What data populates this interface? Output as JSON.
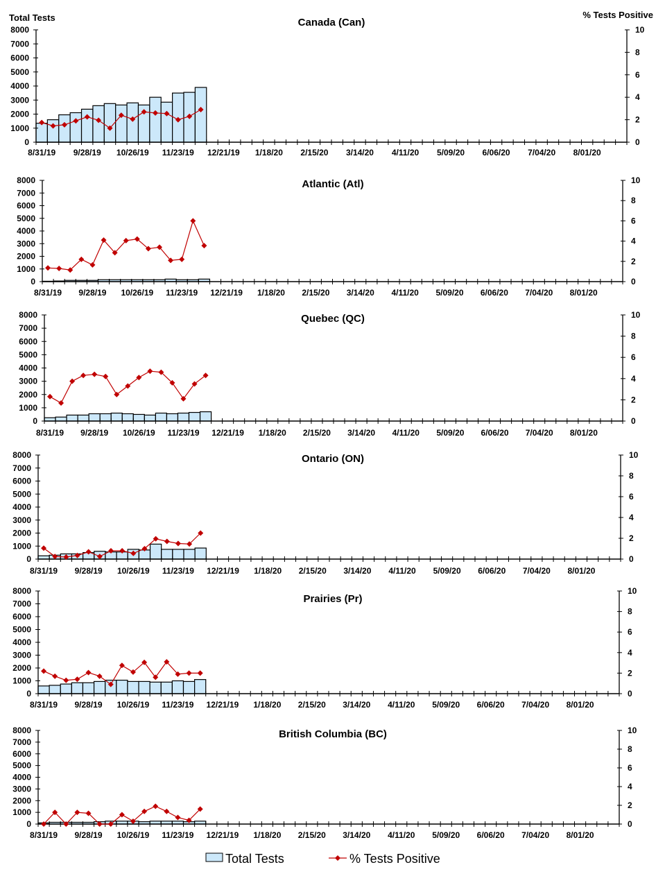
{
  "chart_data": [
    {
      "type": "bar+line",
      "title": "Canada (Can)",
      "ylabel": "Total Tests",
      "y2label": "% Tests Positive",
      "ylim": [
        0,
        8000
      ],
      "y2lim": [
        0,
        10
      ],
      "bars": [
        1350,
        1600,
        1950,
        2100,
        2350,
        2600,
        2750,
        2650,
        2800,
        2650,
        3200,
        2850,
        3500,
        3550,
        3900
      ],
      "line": [
        1.75,
        1.45,
        1.55,
        1.9,
        2.25,
        1.95,
        1.25,
        2.4,
        2.05,
        2.7,
        2.6,
        2.55,
        2.0,
        2.3,
        2.9
      ]
    },
    {
      "type": "bar+line",
      "title": "Atlantic (Atl)",
      "ylim": [
        0,
        8000
      ],
      "y2lim": [
        0,
        10
      ],
      "bars": [
        30,
        50,
        100,
        100,
        100,
        150,
        150,
        150,
        150,
        150,
        150,
        200,
        150,
        150,
        200
      ],
      "line": [
        1.35,
        1.3,
        1.15,
        2.2,
        1.65,
        4.1,
        2.85,
        4.05,
        4.2,
        3.25,
        3.4,
        2.1,
        2.2,
        6.0,
        3.55
      ]
    },
    {
      "type": "bar+line",
      "title": "Quebec (QC)",
      "ylim": [
        0,
        8000
      ],
      "y2lim": [
        0,
        10
      ],
      "bars": [
        250,
        300,
        450,
        450,
        550,
        550,
        600,
        550,
        500,
        450,
        600,
        550,
        600,
        650,
        700
      ],
      "line": [
        2.3,
        1.7,
        3.75,
        4.3,
        4.4,
        4.2,
        2.5,
        3.3,
        4.1,
        4.7,
        4.6,
        3.6,
        2.1,
        3.5,
        4.3
      ]
    },
    {
      "type": "bar+line",
      "title": "Ontario (ON)",
      "ylim": [
        0,
        8000
      ],
      "y2lim": [
        0,
        10
      ],
      "bars": [
        250,
        300,
        400,
        400,
        500,
        600,
        550,
        550,
        750,
        700,
        1150,
        750,
        750,
        750,
        850
      ],
      "line": [
        1.05,
        0.25,
        0.2,
        0.35,
        0.7,
        0.25,
        0.8,
        0.8,
        0.55,
        1.0,
        1.95,
        1.7,
        1.5,
        1.45,
        2.5
      ]
    },
    {
      "type": "bar+line",
      "title": "Prairies (Pr)",
      "ylim": [
        0,
        8000
      ],
      "y2lim": [
        0,
        10
      ],
      "bars": [
        600,
        650,
        750,
        850,
        850,
        950,
        1050,
        1050,
        950,
        950,
        900,
        900,
        1000,
        950,
        1100
      ],
      "line": [
        2.2,
        1.7,
        1.3,
        1.4,
        2.05,
        1.7,
        0.9,
        2.75,
        2.1,
        3.05,
        1.6,
        3.1,
        1.9,
        2.0,
        2.0
      ]
    },
    {
      "type": "bar+line",
      "title": "British Columbia (BC)",
      "ylim": [
        0,
        8000
      ],
      "y2lim": [
        0,
        10
      ],
      "bars": [
        100,
        150,
        150,
        150,
        150,
        200,
        250,
        250,
        250,
        200,
        250,
        250,
        250,
        200,
        250
      ],
      "line": [
        0,
        1.25,
        0,
        1.25,
        1.15,
        0,
        0,
        1.0,
        0.3,
        1.35,
        1.9,
        1.35,
        0.7,
        0.4,
        1.6
      ]
    }
  ],
  "shared": {
    "categories_count": 52,
    "x_tick_labels": [
      "8/31/19",
      "9/28/19",
      "10/26/19",
      "11/23/19",
      "12/21/19",
      "1/18/20",
      "2/15/20",
      "3/14/20",
      "4/11/20",
      "5/09/20",
      "6/06/20",
      "7/04/20",
      "8/01/20"
    ],
    "y_ticks": [
      0,
      1000,
      2000,
      3000,
      4000,
      5000,
      6000,
      7000,
      8000
    ],
    "y2_ticks": [
      0,
      2,
      4,
      6,
      8,
      10
    ],
    "legend": {
      "bars": "Total Tests",
      "line": "% Tests Positive",
      "position": "bottom"
    },
    "colors": {
      "bar_fill": "#cce8fa",
      "bar_stroke": "#000000",
      "line": "#c00000"
    }
  }
}
